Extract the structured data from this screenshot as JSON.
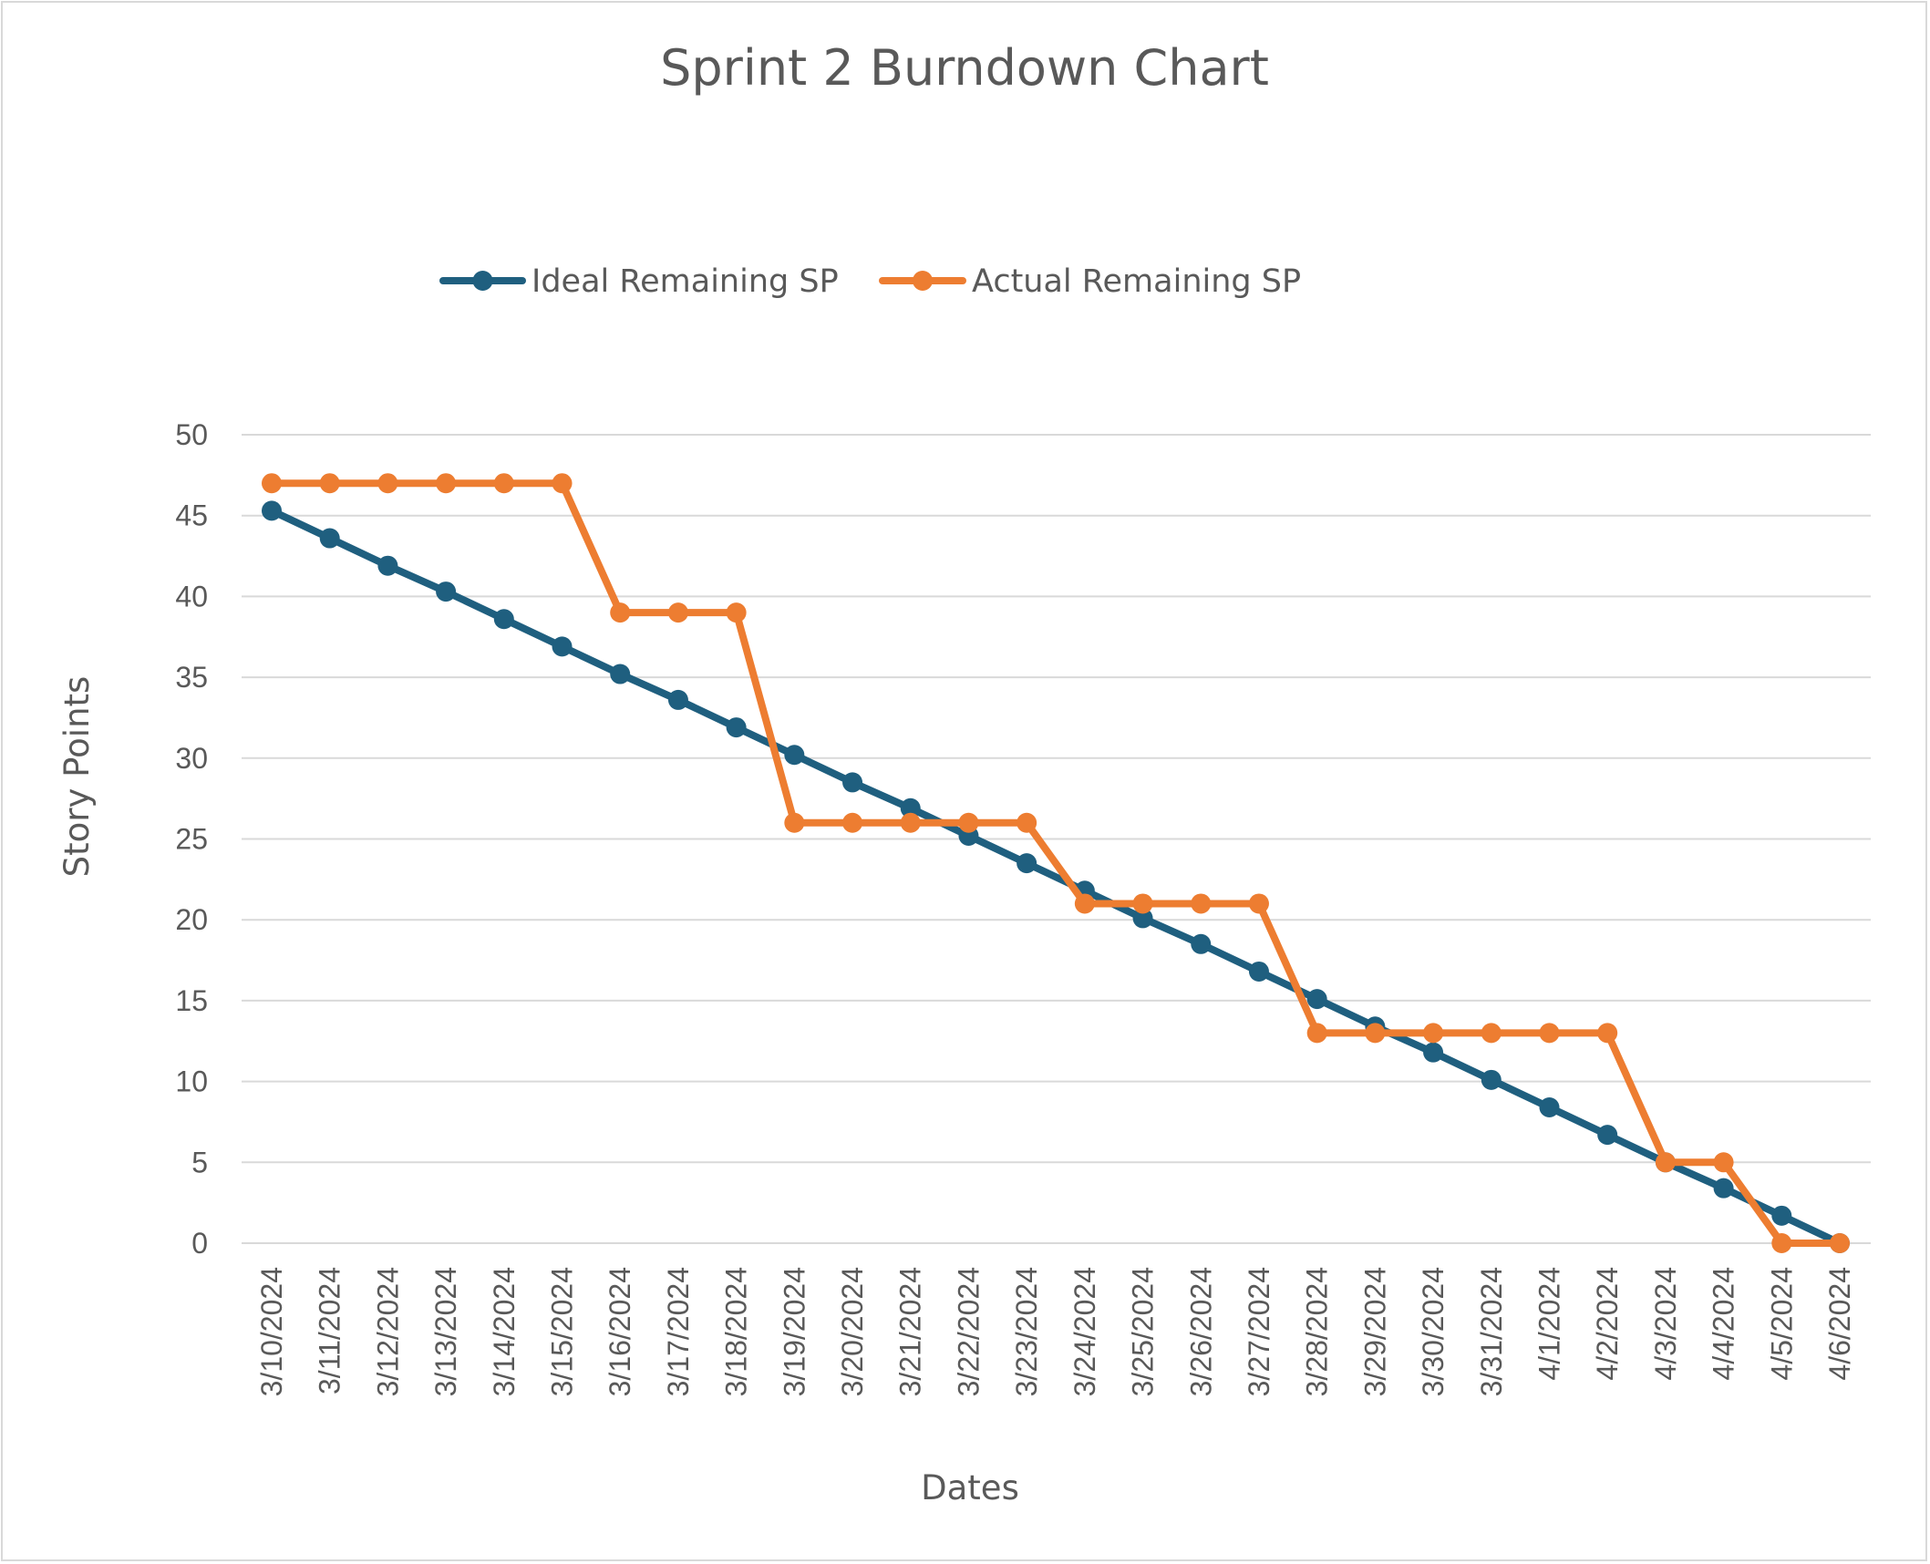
{
  "chart_data": {
    "type": "line",
    "title": "Sprint 2 Burndown Chart",
    "xlabel": "Dates",
    "ylabel": "Story Points",
    "ylim": [
      0,
      50
    ],
    "yticks": [
      "0",
      "5",
      "10",
      "15",
      "20",
      "25",
      "30",
      "35",
      "40",
      "45",
      "50"
    ],
    "grid": true,
    "legend_position": "top",
    "categories": [
      "3/10/2024",
      "3/11/2024",
      "3/12/2024",
      "3/13/2024",
      "3/14/2024",
      "3/15/2024",
      "3/16/2024",
      "3/17/2024",
      "3/18/2024",
      "3/19/2024",
      "3/20/2024",
      "3/21/2024",
      "3/22/2024",
      "3/23/2024",
      "3/24/2024",
      "3/25/2024",
      "3/26/2024",
      "3/27/2024",
      "3/28/2024",
      "3/29/2024",
      "3/30/2024",
      "3/31/2024",
      "4/1/2024",
      "4/2/2024",
      "4/3/2024",
      "4/4/2024",
      "4/5/2024",
      "4/6/2024"
    ],
    "series": [
      {
        "name": "Ideal Remaining SP",
        "color": "#1f5f7f",
        "values": [
          45.3,
          43.6,
          41.9,
          40.3,
          38.6,
          36.9,
          35.2,
          33.6,
          31.9,
          30.2,
          28.5,
          26.9,
          25.2,
          23.5,
          21.8,
          20.1,
          18.5,
          16.8,
          15.1,
          13.4,
          11.8,
          10.1,
          8.4,
          6.7,
          5.0,
          3.4,
          1.7,
          0
        ]
      },
      {
        "name": "Actual Remaining SP",
        "color": "#ed7d31",
        "values": [
          47,
          47,
          47,
          47,
          47,
          47,
          39,
          39,
          39,
          26,
          26,
          26,
          26,
          26,
          21,
          21,
          21,
          21,
          13,
          13,
          13,
          13,
          13,
          13,
          5,
          5,
          0,
          0
        ]
      }
    ]
  }
}
